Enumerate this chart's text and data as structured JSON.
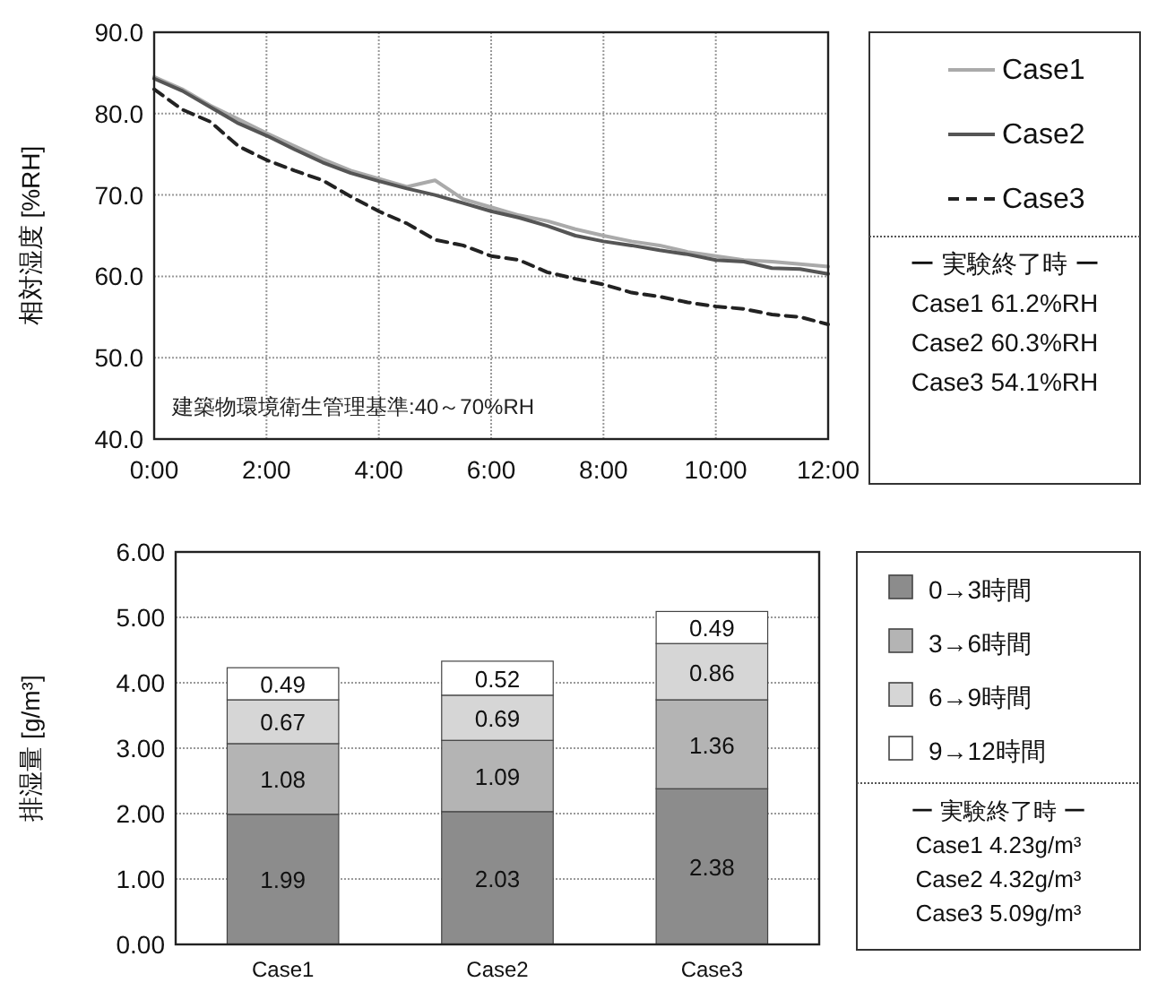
{
  "chart_data": [
    {
      "type": "line",
      "ylabel": "相対湿度 [%RH]",
      "xlim": [
        0,
        12
      ],
      "ylim": [
        40,
        90
      ],
      "xticks": [
        {
          "value": 0,
          "label": "0:00"
        },
        {
          "value": 2,
          "label": "2:00"
        },
        {
          "value": 4,
          "label": "4:00"
        },
        {
          "value": 6,
          "label": "6:00"
        },
        {
          "value": 8,
          "label": "8:00"
        },
        {
          "value": 10,
          "label": "10:00"
        },
        {
          "value": 12,
          "label": "12:00"
        }
      ],
      "yticks": [
        {
          "value": 40,
          "label": "40.0"
        },
        {
          "value": 50,
          "label": "50.0"
        },
        {
          "value": 60,
          "label": "60.0"
        },
        {
          "value": 70,
          "label": "70.0"
        },
        {
          "value": 80,
          "label": "80.0"
        },
        {
          "value": 90,
          "label": "90.0"
        }
      ],
      "x": [
        0,
        0.5,
        1,
        1.5,
        2,
        2.5,
        3,
        3.5,
        4,
        4.5,
        5,
        5.5,
        6,
        6.5,
        7,
        7.5,
        8,
        8.5,
        9,
        9.5,
        10,
        10.5,
        11,
        11.5,
        12
      ],
      "series": [
        {
          "name": "Case1",
          "color": "#aaaaaa",
          "line_style": "solid",
          "values": [
            84.5,
            83.0,
            81.0,
            79.3,
            77.6,
            76.0,
            74.4,
            73.0,
            72.0,
            71.0,
            71.8,
            69.5,
            68.5,
            67.5,
            66.8,
            65.8,
            65.0,
            64.3,
            63.8,
            63.0,
            62.5,
            62.0,
            61.8,
            61.5,
            61.2
          ]
        },
        {
          "name": "Case2",
          "color": "#555555",
          "line_style": "solid",
          "values": [
            84.3,
            82.8,
            80.8,
            78.8,
            77.3,
            75.6,
            74.0,
            72.7,
            71.7,
            70.8,
            70.0,
            69.0,
            68.0,
            67.2,
            66.2,
            65.0,
            64.3,
            63.8,
            63.2,
            62.7,
            62.0,
            61.8,
            61.0,
            60.9,
            60.3
          ]
        },
        {
          "name": "Case3",
          "color": "#222222",
          "line_style": "dashed",
          "values": [
            83.0,
            80.5,
            79.0,
            76.0,
            74.3,
            73.0,
            71.8,
            69.8,
            68.0,
            66.5,
            64.5,
            63.8,
            62.5,
            62.0,
            60.5,
            59.7,
            59.0,
            58.0,
            57.5,
            56.8,
            56.3,
            56.0,
            55.3,
            55.0,
            54.1
          ]
        }
      ],
      "annotations": [
        "建築物環境衛生管理基準:40～70%RH",
        "ー 実験終了時 ー",
        "Case1  61.2%RH",
        "Case2  60.3%RH",
        "Case3  54.1%RH"
      ],
      "grid": true,
      "legend": "right"
    },
    {
      "type": "bar",
      "stacked": true,
      "ylabel": "排湿量 [g/m³]",
      "categories": [
        "Case1",
        "Case2",
        "Case3"
      ],
      "ylim": [
        0,
        6
      ],
      "yticks": [
        {
          "value": 0,
          "label": "0.00"
        },
        {
          "value": 1,
          "label": "1.00"
        },
        {
          "value": 2,
          "label": "2.00"
        },
        {
          "value": 3,
          "label": "3.00"
        },
        {
          "value": 4,
          "label": "4.00"
        },
        {
          "value": 5,
          "label": "5.00"
        },
        {
          "value": 6,
          "label": "6.00"
        }
      ],
      "series": [
        {
          "name": "0→3時間",
          "color": "#8c8c8c",
          "values": [
            1.99,
            2.03,
            2.38
          ]
        },
        {
          "name": "3→6時間",
          "color": "#b4b4b4",
          "values": [
            1.08,
            1.09,
            1.36
          ]
        },
        {
          "name": "6→9時間",
          "color": "#d6d6d6",
          "values": [
            0.67,
            0.69,
            0.86
          ]
        },
        {
          "name": "9→12時間",
          "color": "#ffffff",
          "values": [
            0.49,
            0.52,
            0.49
          ]
        }
      ],
      "data_labels": true,
      "annotations": [
        "ー 実験終了時 ー",
        "Case1  4.23g/m³",
        "Case2  4.32g/m³",
        "Case3  5.09g/m³"
      ],
      "grid": "y",
      "legend": "right"
    }
  ]
}
